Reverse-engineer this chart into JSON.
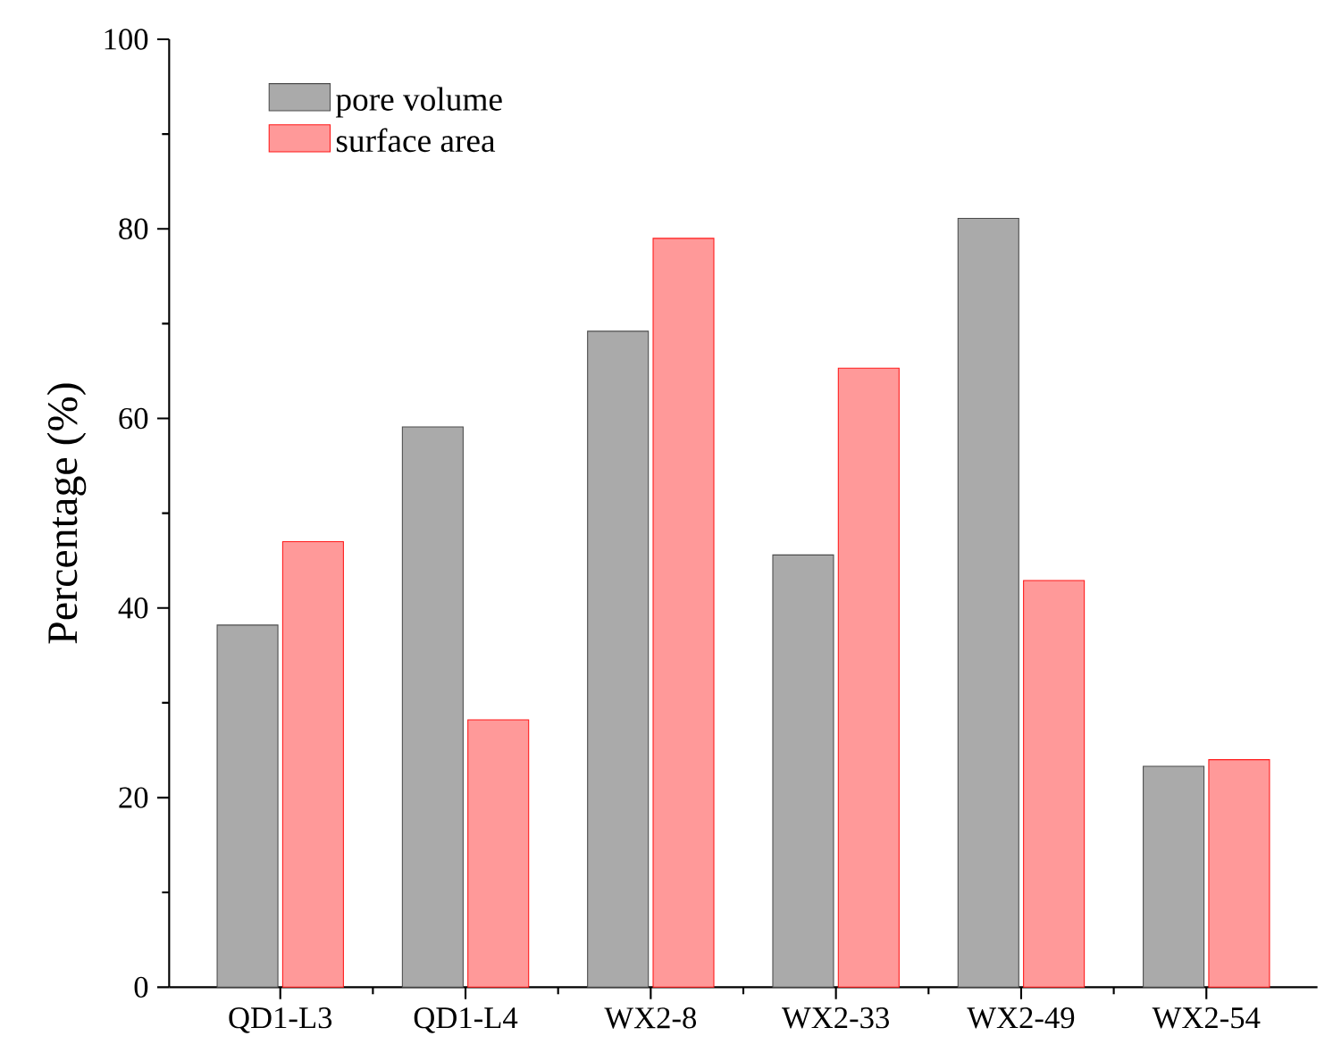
{
  "chart_data": {
    "type": "bar",
    "ylabel": "Percentage (%)",
    "categories": [
      "QD1-L3",
      "QD1-L4",
      "WX2-8",
      "WX2-33",
      "WX2-49",
      "WX2-54"
    ],
    "series": [
      {
        "name": "pore volume",
        "color": "#aaaaaa",
        "values": [
          38.2,
          59.1,
          69.2,
          45.6,
          81.1,
          23.3
        ]
      },
      {
        "name": "surface area",
        "color": "#ff9999",
        "values": [
          47.0,
          28.2,
          79.0,
          65.3,
          42.9,
          24.0
        ]
      }
    ],
    "ylim": [
      0,
      100
    ],
    "yticks": [
      0,
      20,
      40,
      60,
      80,
      100
    ],
    "legend": "top left"
  }
}
